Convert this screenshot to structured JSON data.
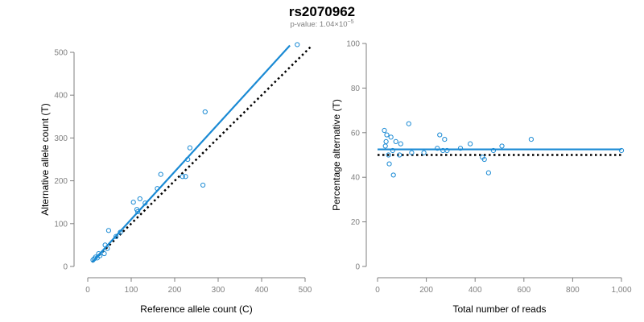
{
  "title": "rs2070962",
  "subtitle": {
    "prefix": "p-value: 1.04×10",
    "exponent": "−5"
  },
  "colors": {
    "points": "#1a8ad4",
    "fit_line": "#1a8ad4",
    "reference_line": "#000000",
    "axis": "#7f7f7f"
  },
  "chart_data": [
    {
      "type": "scatter",
      "xlabel": "Reference allele count (C)",
      "ylabel": "Alternative allele count (T)",
      "xlim": [
        0,
        500
      ],
      "ylim": [
        0,
        500
      ],
      "xticks": [
        0,
        100,
        200,
        300,
        400,
        500
      ],
      "yticks": [
        0,
        100,
        200,
        300,
        400,
        500
      ],
      "xticklabels": [
        "0",
        "100",
        "200",
        "300",
        "400",
        "500"
      ],
      "yticklabels": [
        "0",
        "100",
        "200",
        "300",
        "400",
        "500"
      ],
      "grid": false,
      "points": [
        {
          "x": 12,
          "y": 15
        },
        {
          "x": 15,
          "y": 18
        },
        {
          "x": 18,
          "y": 22
        },
        {
          "x": 22,
          "y": 20
        },
        {
          "x": 25,
          "y": 30
        },
        {
          "x": 28,
          "y": 25
        },
        {
          "x": 38,
          "y": 30
        },
        {
          "x": 40,
          "y": 50
        },
        {
          "x": 45,
          "y": 42
        },
        {
          "x": 48,
          "y": 84
        },
        {
          "x": 65,
          "y": 70
        },
        {
          "x": 75,
          "y": 80
        },
        {
          "x": 105,
          "y": 150
        },
        {
          "x": 113,
          "y": 133
        },
        {
          "x": 115,
          "y": 128
        },
        {
          "x": 120,
          "y": 158
        },
        {
          "x": 132,
          "y": 148
        },
        {
          "x": 160,
          "y": 182
        },
        {
          "x": 168,
          "y": 215
        },
        {
          "x": 218,
          "y": 210
        },
        {
          "x": 225,
          "y": 210
        },
        {
          "x": 230,
          "y": 250
        },
        {
          "x": 235,
          "y": 277
        },
        {
          "x": 265,
          "y": 190
        },
        {
          "x": 270,
          "y": 361
        },
        {
          "x": 482,
          "y": 518
        }
      ],
      "fit_line": {
        "x": [
          10,
          465
        ],
        "y": [
          10,
          516
        ]
      },
      "reference_line": {
        "x": [
          10,
          515
        ],
        "y": [
          10,
          515
        ]
      }
    },
    {
      "type": "scatter",
      "xlabel": "Total number of reads",
      "ylabel": "Percentage alternative (T)",
      "xlim": [
        0,
        1000
      ],
      "ylim": [
        0,
        100
      ],
      "xticks": [
        0,
        200,
        400,
        600,
        800,
        1000
      ],
      "yticks": [
        0,
        20,
        40,
        60,
        80,
        100
      ],
      "xticklabels": [
        "0",
        "200",
        "400",
        "600",
        "800",
        "1,000"
      ],
      "yticklabels": [
        "0",
        "20",
        "40",
        "60",
        "80",
        "100"
      ],
      "grid": false,
      "points": [
        {
          "x": 28,
          "y": 61
        },
        {
          "x": 32,
          "y": 54
        },
        {
          "x": 35,
          "y": 56
        },
        {
          "x": 38,
          "y": 59
        },
        {
          "x": 45,
          "y": 50
        },
        {
          "x": 48,
          "y": 46
        },
        {
          "x": 55,
          "y": 58
        },
        {
          "x": 62,
          "y": 52
        },
        {
          "x": 65,
          "y": 41
        },
        {
          "x": 75,
          "y": 56
        },
        {
          "x": 90,
          "y": 50
        },
        {
          "x": 95,
          "y": 55
        },
        {
          "x": 128,
          "y": 64
        },
        {
          "x": 140,
          "y": 51
        },
        {
          "x": 190,
          "y": 51
        },
        {
          "x": 245,
          "y": 53
        },
        {
          "x": 255,
          "y": 59
        },
        {
          "x": 268,
          "y": 52
        },
        {
          "x": 275,
          "y": 57
        },
        {
          "x": 285,
          "y": 52
        },
        {
          "x": 340,
          "y": 53
        },
        {
          "x": 380,
          "y": 55
        },
        {
          "x": 430,
          "y": 49
        },
        {
          "x": 438,
          "y": 48
        },
        {
          "x": 455,
          "y": 42
        },
        {
          "x": 475,
          "y": 52
        },
        {
          "x": 510,
          "y": 54
        },
        {
          "x": 630,
          "y": 57
        },
        {
          "x": 1000,
          "y": 52
        }
      ],
      "fit_line": {
        "x": [
          0,
          1000
        ],
        "y": [
          52.5,
          52.5
        ]
      },
      "reference_line": {
        "x": [
          0,
          1000
        ],
        "y": [
          50,
          50
        ]
      }
    }
  ]
}
